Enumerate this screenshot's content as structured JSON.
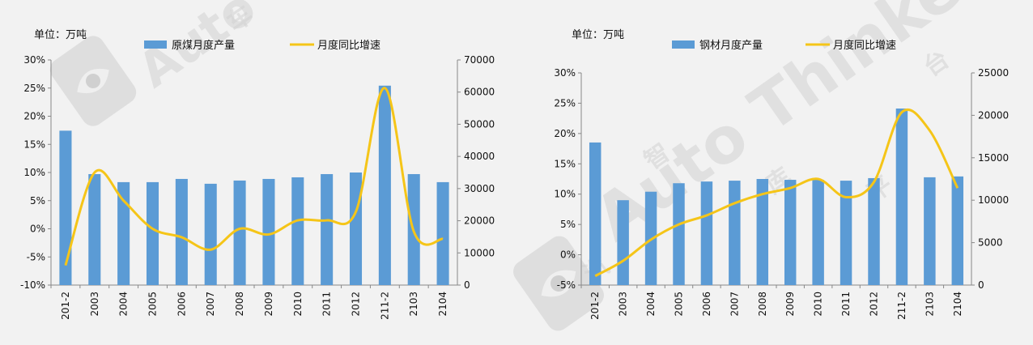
{
  "chart_data": [
    {
      "type": "bar+line",
      "unit_label": "单位：万吨",
      "categories": [
        "201-2",
        "2003",
        "2004",
        "2005",
        "2006",
        "2007",
        "2008",
        "2009",
        "2010",
        "2011",
        "2012",
        "211-2",
        "2103",
        "2104"
      ],
      "series": [
        {
          "name": "原煤月度产量",
          "type": "bar",
          "axis": "right",
          "color": "#5b9bd5",
          "values": [
            48000,
            34500,
            32000,
            32000,
            33000,
            31500,
            32500,
            33000,
            33500,
            34500,
            35000,
            62000,
            34500,
            32000
          ]
        },
        {
          "name": "月度同比增速",
          "type": "line",
          "axis": "left",
          "color": "#f5c518",
          "values": [
            -6.5,
            10.0,
            5.0,
            0.0,
            -1.5,
            -3.7,
            0.0,
            -1.0,
            1.5,
            1.5,
            3.0,
            25.0,
            -0.5,
            -1.8
          ]
        }
      ],
      "y_left": {
        "min": -10,
        "max": 30,
        "step": 5,
        "format": "percent",
        "ticks": [
          "30%",
          "25%",
          "20%",
          "15%",
          "10%",
          "5%",
          "0%",
          "-5%",
          "-10%"
        ]
      },
      "y_right": {
        "min": 0,
        "max": 70000,
        "step": 10000,
        "ticks": [
          "70000",
          "60000",
          "50000",
          "40000",
          "30000",
          "20000",
          "10000",
          "0"
        ]
      },
      "legend_position": "top"
    },
    {
      "type": "bar+line",
      "unit_label": "单位：万吨",
      "categories": [
        "201-2",
        "2003",
        "2004",
        "2005",
        "2006",
        "2007",
        "2008",
        "2009",
        "2010",
        "2011",
        "2012",
        "211-2",
        "2103",
        "2104"
      ],
      "series": [
        {
          "name": "钢材月度产量",
          "type": "bar",
          "axis": "right",
          "color": "#5b9bd5",
          "values": [
            16800,
            10000,
            11000,
            12000,
            12200,
            12300,
            12500,
            12400,
            12400,
            12300,
            12600,
            20800,
            12700,
            12800
          ]
        },
        {
          "name": "月度同比增速",
          "type": "line",
          "axis": "left",
          "color": "#f5c518",
          "values": [
            -3.5,
            -1.0,
            2.5,
            5.0,
            6.5,
            8.5,
            10.0,
            11.0,
            12.5,
            9.5,
            12.0,
            23.5,
            20.5,
            11.0
          ]
        }
      ],
      "y_left": {
        "min": -5,
        "max": 30,
        "step": 5,
        "format": "percent",
        "ticks": [
          "30%",
          "25%",
          "20%",
          "15%",
          "10%",
          "5%",
          "0%",
          "-5%"
        ]
      },
      "y_right": {
        "min": 0,
        "max": 25000,
        "step": 5000,
        "ticks": [
          "25000",
          "20000",
          "15000",
          "10000",
          "5000",
          "0"
        ]
      },
      "legend_position": "top"
    }
  ],
  "watermark": {
    "text": "Auto Thinker",
    "cn_chars": [
      "汽",
      "车",
      "智",
      "库",
      "平",
      "台"
    ]
  }
}
